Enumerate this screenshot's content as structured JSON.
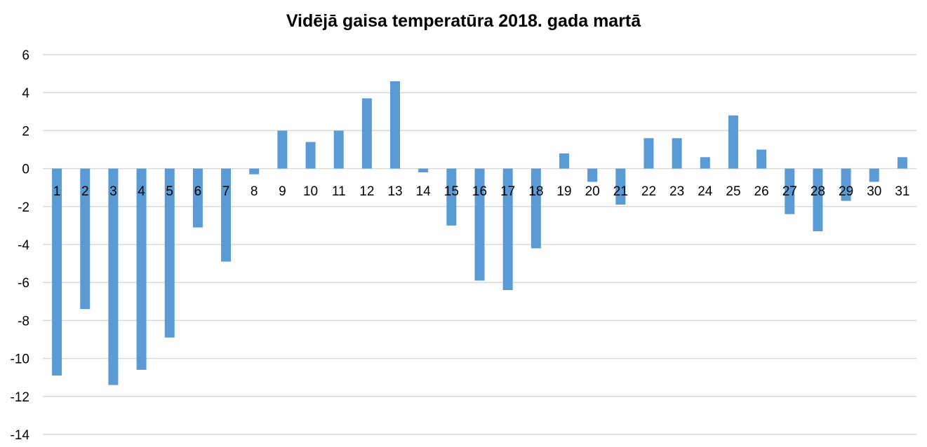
{
  "chart_data": {
    "type": "bar",
    "title": "Vidējā gaisa temperatūra 2018. gada martā",
    "xlabel": "",
    "ylabel": "",
    "ylim": [
      -14,
      6
    ],
    "yticks": [
      6,
      4,
      2,
      0,
      -2,
      -4,
      -6,
      -8,
      -10,
      -12,
      -14
    ],
    "grid": true,
    "legend": "none",
    "bar_color": "#5B9BD5",
    "grid_color": "#D9D9D9",
    "categories": [
      "1",
      "2",
      "3",
      "4",
      "5",
      "6",
      "7",
      "8",
      "9",
      "10",
      "11",
      "12",
      "13",
      "14",
      "15",
      "16",
      "17",
      "18",
      "19",
      "20",
      "21",
      "22",
      "23",
      "24",
      "25",
      "26",
      "27",
      "28",
      "29",
      "30",
      "31"
    ],
    "values": [
      -10.9,
      -7.4,
      -11.4,
      -10.6,
      -8.9,
      -3.1,
      -4.9,
      -0.3,
      2.0,
      1.4,
      2.0,
      3.7,
      4.6,
      -0.2,
      -3.0,
      -5.9,
      -6.4,
      -4.2,
      0.8,
      -0.7,
      -1.9,
      1.6,
      1.6,
      0.6,
      2.8,
      1.0,
      -2.4,
      -3.3,
      -1.7,
      -0.7,
      0.6
    ]
  }
}
